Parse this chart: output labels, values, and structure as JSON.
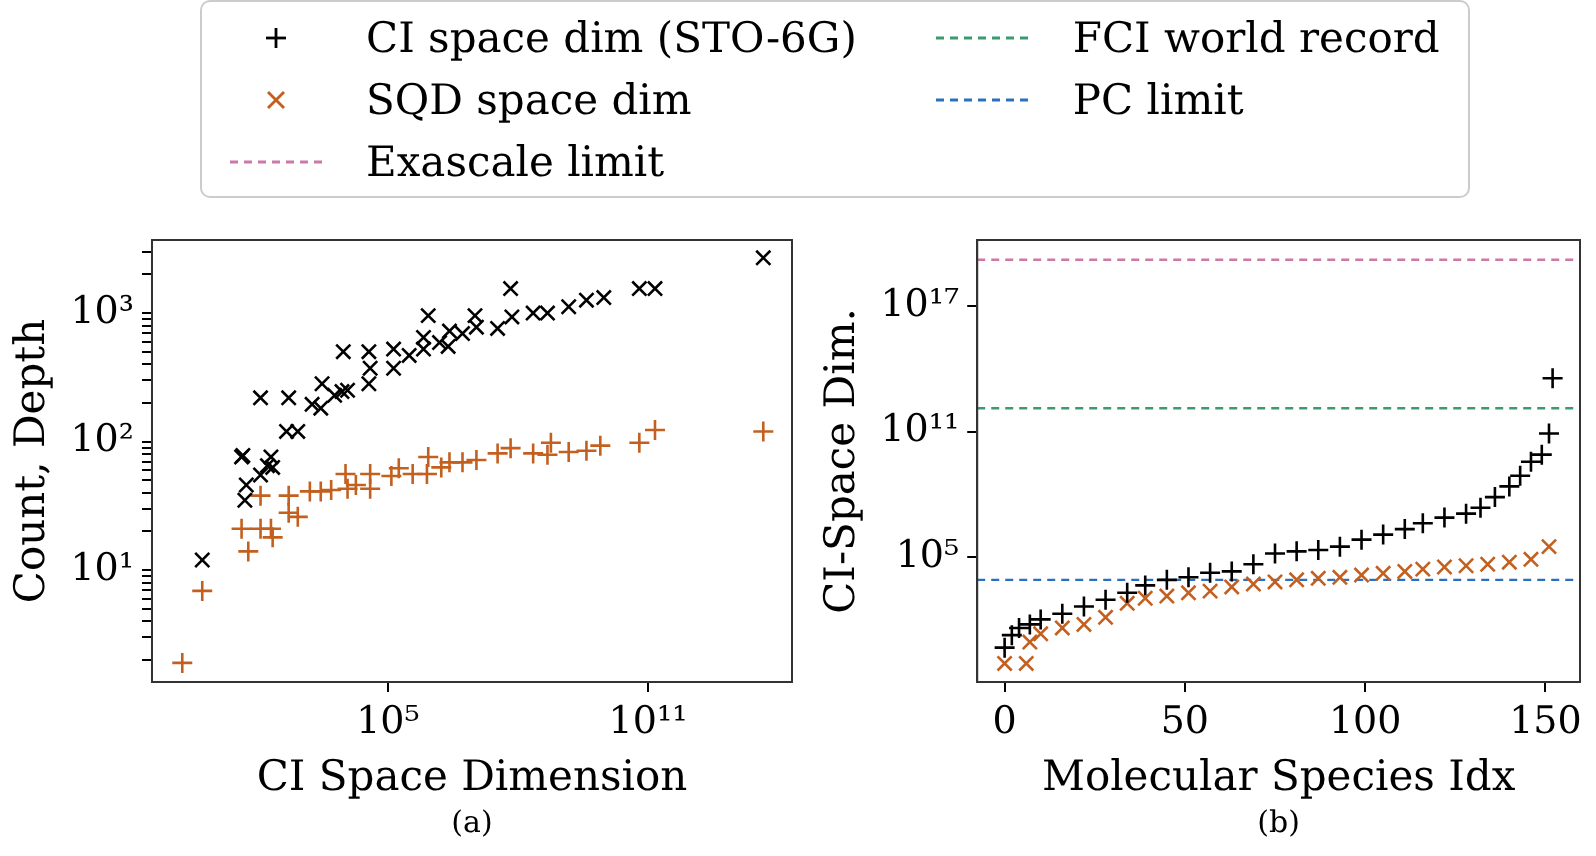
{
  "chart_data": [
    {
      "type": "scatter",
      "xlabel": "CI Space Dimension",
      "ylabel": "Count, Depth",
      "annotations": [
        "(a)"
      ],
      "log": "xy",
      "grid": false,
      "xlim": [
        0.36,
        210000000000000.0
      ],
      "ylim": [
        1.35,
        3700
      ],
      "xticks": [
        {
          "value": 100000,
          "label": "10⁵"
        },
        {
          "value": 100000000000.0,
          "label": "10¹¹"
        }
      ],
      "yticks": [
        {
          "value": 2,
          "label": null
        },
        {
          "value": 3,
          "label": null
        },
        {
          "value": 4,
          "label": null
        },
        {
          "value": 5,
          "label": null
        },
        {
          "value": 6,
          "label": null
        },
        {
          "value": 7,
          "label": null
        },
        {
          "value": 8,
          "label": null
        },
        {
          "value": 9,
          "label": null
        },
        {
          "value": 10,
          "label": "10¹"
        },
        {
          "value": 20,
          "label": null
        },
        {
          "value": 30,
          "label": null
        },
        {
          "value": 40,
          "label": null
        },
        {
          "value": 50,
          "label": null
        },
        {
          "value": 60,
          "label": null
        },
        {
          "value": 70,
          "label": null
        },
        {
          "value": 80,
          "label": null
        },
        {
          "value": 90,
          "label": null
        },
        {
          "value": 100,
          "label": "10²"
        },
        {
          "value": 200,
          "label": null
        },
        {
          "value": 300,
          "label": null
        },
        {
          "value": 400,
          "label": null
        },
        {
          "value": 500,
          "label": null
        },
        {
          "value": 600,
          "label": null
        },
        {
          "value": 700,
          "label": null
        },
        {
          "value": 800,
          "label": null
        },
        {
          "value": 900,
          "label": null
        },
        {
          "value": 1000,
          "label": "10³"
        },
        {
          "value": 2000,
          "label": null
        },
        {
          "value": 3000,
          "label": null
        }
      ],
      "series": [
        {
          "color": "#000000",
          "marker": "cross",
          "x": [
            5.2,
            50,
            54,
            42,
            45,
            115,
            166,
            200,
            219,
            115,
            513,
            457,
            832,
            1780,
            2820,
            3020,
            5890,
            8710,
            11700,
            9330,
            36300,
            38900,
            36300,
            135000,
            135000,
            309000,
            661000,
            661000,
            851000,
            1550000,
            2450000,
            2630000,
            5250000,
            10200000,
            11000000,
            33900000,
            67600000,
            72400000,
            224000000,
            479000000,
            1480000000,
            3800000000,
            9550000000,
            63100000000,
            145000000000,
            45700000000000
          ],
          "values": [
            12,
            35,
            46,
            76,
            78,
            55,
            65,
            76,
            63,
            219,
            219,
            120,
            120,
            195,
            182,
            282,
            229,
            245,
            251,
            501,
            501,
            372,
            282,
            525,
            372,
            468,
            525,
            646,
            955,
            589,
            550,
            724,
            692,
            955,
            776,
            759,
            1550,
            933,
            1000,
            1000,
            1120,
            1260,
            1320,
            1550,
            1550,
            2690
          ]
        },
        {
          "color": "#c3601f",
          "marker": "plus",
          "x": [
            1.8,
            5.2,
            42,
            60,
            115,
            115,
            200,
            219,
            513,
            513,
            832,
            1580,
            2820,
            4900,
            10500,
            11700,
            18200,
            38900,
            38900,
            120000,
            178000,
            372000,
            851000,
            794000,
            1700000,
            2630000,
            5250000,
            11000000,
            33900000,
            67600000,
            224000000,
            479000000,
            575000000,
            1480000000,
            3800000000,
            7940000000,
            63100000000,
            145000000000,
            45700000000000
          ],
          "values": [
            1.9,
            6.9,
            21,
            14,
            21,
            38,
            21,
            18,
            38,
            28,
            26,
            41,
            41,
            42,
            56,
            43,
            46,
            56,
            43,
            54,
            62,
            56,
            76,
            56,
            63,
            69,
            69,
            72,
            81,
            89,
            81,
            79,
            98,
            83,
            85,
            93,
            98,
            123,
            120
          ]
        }
      ]
    },
    {
      "type": "scatter",
      "xlabel": "Molecular Species Idx",
      "ylabel": "CI-Space Dim.",
      "annotations": [
        "(b)"
      ],
      "log": "y",
      "grid": false,
      "legend": "top",
      "xlim": [
        -7.6,
        159.6
      ],
      "xticks": [
        0,
        50,
        100,
        150
      ],
      "ylim": [
        0.11,
        1.4e+20
      ],
      "yticks": [
        {
          "value": 100000,
          "label": "10⁵"
        },
        {
          "value": 100000000000.0,
          "label": "10¹¹"
        },
        {
          "value": 1e+17,
          "label": "10¹⁷"
        }
      ],
      "ref_lines": [
        {
          "axis": "y",
          "value": 1.6e+19,
          "label": "Exascale limit",
          "color": "#cc79a7",
          "line_style": "dashed"
        },
        {
          "axis": "y",
          "value": 1300000000000.0,
          "label": "FCI world record",
          "color": "#3a9b6e",
          "line_style": "dashed"
        },
        {
          "axis": "y",
          "value": 8300,
          "label": "PC limit",
          "color": "#2d6fbf",
          "line_style": "dashed"
        }
      ],
      "series": [
        {
          "name": "CI space dim (STO-6G)",
          "color": "#000000",
          "marker": "plus",
          "x": [
            0,
            2,
            4,
            7,
            10,
            16,
            22,
            28,
            34,
            39,
            45,
            51,
            57,
            63,
            69,
            75,
            81,
            87,
            93,
            99,
            105,
            111,
            116,
            122,
            128,
            132,
            136,
            140,
            143,
            146,
            149,
            151,
            152
          ],
          "values": [
            4.8,
            19,
            42,
            62,
            107,
            200,
            440,
            930,
            2000,
            4500,
            8300,
            11000,
            18000,
            21000,
            46000,
            150000,
            190000,
            220000,
            320000,
            690000,
            1200000,
            2200000,
            4200000,
            7800000,
            12000000,
            23000000,
            74000000,
            240000000,
            780000000,
            3600000000,
            7900000000,
            81000000000,
            35000000000000
          ]
        },
        {
          "name": "SQD space dim",
          "color": "#c3601f",
          "marker": "cross",
          "x": [
            0,
            6,
            7,
            10,
            16,
            22,
            28,
            34,
            39,
            45,
            51,
            57,
            63,
            69,
            75,
            81,
            87,
            93,
            99,
            105,
            111,
            116,
            122,
            128,
            134,
            140,
            146,
            151
          ],
          "values": [
            0.85,
            0.85,
            8.9,
            22,
            42,
            62,
            135,
            630,
            1100,
            1400,
            2000,
            2400,
            3800,
            5200,
            6600,
            8300,
            9800,
            11000,
            14000,
            17000,
            21000,
            27000,
            34000,
            39000,
            46000,
            58000,
            79000,
            320000
          ]
        }
      ]
    }
  ]
}
